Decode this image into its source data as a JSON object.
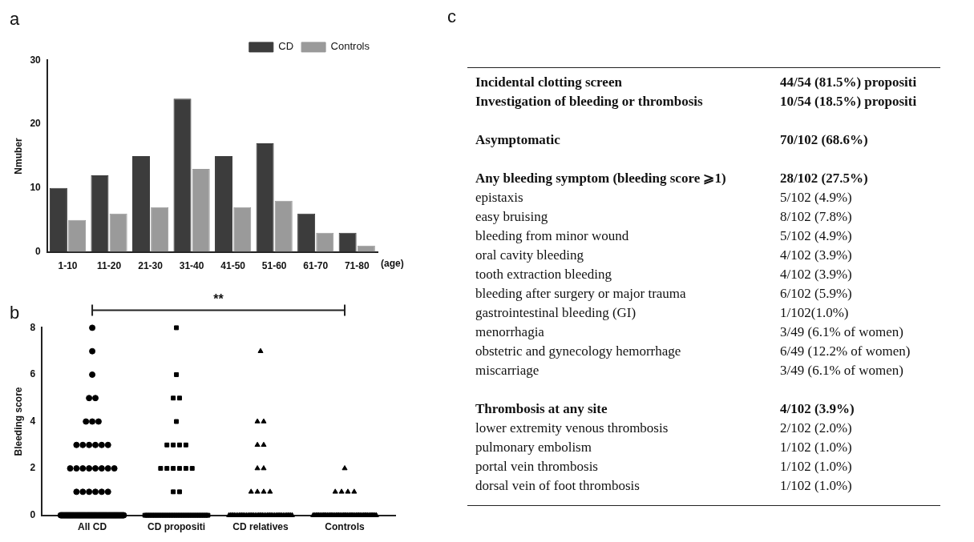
{
  "chart_data": [
    {
      "type": "bar",
      "title": "a",
      "xlabel": "(age)",
      "ylabel": "Nmuber",
      "categories": [
        "1-10",
        "11-20",
        "21-30",
        "31-40",
        "41-50",
        "51-60",
        "61-70",
        "71-80"
      ],
      "legend": "top right",
      "ylim": [
        0,
        30
      ],
      "yticks": [
        0,
        10,
        20,
        30
      ],
      "series": [
        {
          "name": "CD",
          "color": "#3c3c3c",
          "values": [
            10,
            12,
            15,
            24,
            15,
            17,
            6,
            3
          ]
        },
        {
          "name": "Controls",
          "color": "#9a9a9a",
          "values": [
            5,
            6,
            7,
            13,
            7,
            8,
            3,
            1
          ]
        }
      ]
    },
    {
      "type": "scatter",
      "title": "b",
      "ylabel": "Bleeding score",
      "categories": [
        "All CD",
        "CD propositi",
        "CD relatives",
        "Controls"
      ],
      "ylim": [
        0,
        8
      ],
      "yticks": [
        0,
        2,
        4,
        6,
        8
      ],
      "annotations": [
        "**"
      ],
      "series": [
        {
          "color": "#000000",
          "marker": "circle",
          "x": [
            "All CD",
            "All CD",
            "All CD",
            "All CD",
            "All CD",
            "All CD",
            "All CD",
            "All CD",
            "All CD",
            "All CD",
            "All CD",
            "All CD",
            "All CD",
            "All CD",
            "All CD",
            "All CD",
            "All CD",
            "All CD",
            "All CD",
            "All CD",
            "All CD",
            "All CD",
            "All CD",
            "All CD",
            "All CD",
            "All CD",
            "All CD",
            "All CD",
            "All CD",
            "All CD",
            "All CD",
            "All CD",
            "All CD",
            "All CD",
            "All CD",
            "All CD",
            "All CD",
            "All CD",
            "All CD",
            "All CD",
            "All CD",
            "All CD",
            "All CD",
            "All CD",
            "All CD",
            "All CD",
            "All CD",
            "All CD",
            "All CD",
            "All CD",
            "All CD",
            "All CD",
            "All CD",
            "All CD",
            "All CD",
            "All CD",
            "All CD",
            "All CD",
            "All CD",
            "All CD",
            "All CD",
            "All CD",
            "All CD",
            "All CD",
            "All CD",
            "All CD",
            "All CD",
            "All CD",
            "All CD",
            "All CD",
            "All CD",
            "All CD",
            "All CD",
            "All CD",
            "All CD",
            "All CD",
            "All CD",
            "All CD",
            "All CD",
            "All CD",
            "All CD",
            "All CD",
            "All CD",
            "All CD",
            "All CD",
            "All CD",
            "All CD",
            "All CD",
            "All CD",
            "All CD",
            "All CD",
            "All CD",
            "All CD",
            "All CD",
            "All CD",
            "All CD",
            "All CD",
            "All CD",
            "All CD",
            "All CD",
            "All CD",
            "All CD"
          ],
          "values": [
            8,
            7,
            6,
            5,
            5,
            4,
            4,
            4,
            3,
            3,
            3,
            3,
            3,
            3,
            2,
            2,
            2,
            2,
            2,
            2,
            2,
            2,
            1,
            1,
            1,
            1,
            1,
            1,
            0,
            0,
            0,
            0,
            0,
            0,
            0,
            0,
            0,
            0,
            0,
            0,
            0,
            0,
            0,
            0,
            0,
            0,
            0,
            0,
            0,
            0,
            0,
            0,
            0,
            0,
            0,
            0,
            0,
            0,
            0,
            0,
            0,
            0,
            0,
            0,
            0,
            0,
            0,
            0,
            0,
            0,
            0,
            0,
            0,
            0,
            0,
            0,
            0,
            0,
            0,
            0,
            0,
            0,
            0,
            0,
            0,
            0,
            0,
            0,
            0,
            0,
            0,
            0,
            0,
            0,
            0,
            0,
            0,
            0,
            0,
            0,
            0,
            0
          ]
        },
        {
          "color": "#000000",
          "marker": "square",
          "x": [
            "CD propositi",
            "CD propositi",
            "CD propositi",
            "CD propositi",
            "CD propositi",
            "CD propositi",
            "CD propositi",
            "CD propositi",
            "CD propositi",
            "CD propositi",
            "CD propositi",
            "CD propositi",
            "CD propositi",
            "CD propositi",
            "CD propositi",
            "CD propositi",
            "CD propositi",
            "CD propositi",
            "CD propositi",
            "CD propositi",
            "CD propositi",
            "CD propositi",
            "CD propositi",
            "CD propositi",
            "CD propositi",
            "CD propositi",
            "CD propositi",
            "CD propositi",
            "CD propositi",
            "CD propositi",
            "CD propositi",
            "CD propositi",
            "CD propositi",
            "CD propositi",
            "CD propositi",
            "CD propositi",
            "CD propositi",
            "CD propositi",
            "CD propositi",
            "CD propositi",
            "CD propositi",
            "CD propositi",
            "CD propositi",
            "CD propositi",
            "CD propositi",
            "CD propositi",
            "CD propositi",
            "CD propositi",
            "CD propositi",
            "CD propositi",
            "CD propositi",
            "CD propositi",
            "CD propositi",
            "CD propositi"
          ],
          "values": [
            8,
            6,
            5,
            5,
            4,
            3,
            3,
            3,
            3,
            2,
            2,
            2,
            2,
            2,
            2,
            1,
            1,
            0,
            0,
            0,
            0,
            0,
            0,
            0,
            0,
            0,
            0,
            0,
            0,
            0,
            0,
            0,
            0,
            0,
            0,
            0,
            0,
            0,
            0,
            0,
            0,
            0,
            0,
            0,
            0,
            0,
            0,
            0,
            0,
            0,
            0,
            0,
            0,
            0
          ]
        },
        {
          "color": "#000000",
          "marker": "triangle",
          "x": [
            "CD relatives",
            "CD relatives",
            "CD relatives",
            "CD relatives",
            "CD relatives",
            "CD relatives",
            "CD relatives",
            "CD relatives",
            "CD relatives",
            "CD relatives",
            "CD relatives",
            "CD relatives",
            "CD relatives",
            "CD relatives",
            "CD relatives",
            "CD relatives",
            "CD relatives",
            "CD relatives",
            "CD relatives",
            "CD relatives",
            "CD relatives",
            "CD relatives",
            "CD relatives",
            "CD relatives",
            "CD relatives",
            "CD relatives",
            "CD relatives",
            "CD relatives",
            "CD relatives",
            "CD relatives",
            "CD relatives",
            "CD relatives",
            "CD relatives",
            "CD relatives",
            "CD relatives",
            "CD relatives",
            "CD relatives",
            "CD relatives",
            "CD relatives",
            "CD relatives",
            "CD relatives",
            "CD relatives",
            "CD relatives",
            "CD relatives",
            "CD relatives",
            "CD relatives",
            "CD relatives",
            "CD relatives"
          ],
          "values": [
            7,
            4,
            4,
            3,
            3,
            2,
            2,
            1,
            1,
            1,
            1,
            0,
            0,
            0,
            0,
            0,
            0,
            0,
            0,
            0,
            0,
            0,
            0,
            0,
            0,
            0,
            0,
            0,
            0,
            0,
            0,
            0,
            0,
            0,
            0,
            0,
            0,
            0,
            0,
            0,
            0,
            0,
            0,
            0,
            0,
            0,
            0,
            0
          ]
        },
        {
          "color": "#000000",
          "marker": "triangle",
          "x": [
            "Controls",
            "Controls",
            "Controls",
            "Controls",
            "Controls",
            "Controls",
            "Controls",
            "Controls",
            "Controls",
            "Controls",
            "Controls",
            "Controls",
            "Controls",
            "Controls",
            "Controls",
            "Controls",
            "Controls",
            "Controls",
            "Controls",
            "Controls",
            "Controls",
            "Controls",
            "Controls",
            "Controls",
            "Controls",
            "Controls",
            "Controls",
            "Controls",
            "Controls",
            "Controls",
            "Controls",
            "Controls",
            "Controls",
            "Controls",
            "Controls",
            "Controls",
            "Controls",
            "Controls",
            "Controls",
            "Controls",
            "Controls",
            "Controls",
            "Controls",
            "Controls",
            "Controls",
            "Controls",
            "Controls",
            "Controls",
            "Controls",
            "Controls"
          ],
          "values": [
            2,
            1,
            1,
            1,
            1,
            0,
            0,
            0,
            0,
            0,
            0,
            0,
            0,
            0,
            0,
            0,
            0,
            0,
            0,
            0,
            0,
            0,
            0,
            0,
            0,
            0,
            0,
            0,
            0,
            0,
            0,
            0,
            0,
            0,
            0,
            0,
            0,
            0,
            0,
            0,
            0,
            0,
            0,
            0,
            0,
            0,
            0,
            0,
            0,
            0
          ]
        }
      ]
    },
    {
      "type": "other",
      "title": "c",
      "annotations": [
        "Incidental clotting screen",
        "44/54 (81.5%) propositi",
        "Investigation of bleeding or thrombosis",
        "10/54 (18.5%) propositi",
        "Asymptomatic",
        "70/102 (68.6%)",
        "Any bleeding symptom (bleeding score ⩾1)",
        "28/102 (27.5%)",
        "epistaxis",
        "5/102 (4.9%)",
        "easy bruising",
        "8/102 (7.8%)",
        "bleeding from minor wound",
        "5/102 (4.9%)",
        "oral cavity bleeding",
        "4/102 (3.9%)",
        "tooth extraction bleeding",
        "4/102 (3.9%)",
        "bleeding after surgery or major trauma",
        "6/102 (5.9%)",
        "gastrointestinal bleeding (GI)",
        "1/102(1.0%)",
        "menorrhagia",
        "3/49 (6.1% of women)",
        "obstetric and gynecology hemorrhage",
        "6/49 (12.2% of women)",
        "miscarriage",
        "3/49 (6.1% of women)",
        "Thrombosis at any site",
        "4/102 (3.9%)",
        "lower extremity venous thrombosis",
        "2/102 (2.0%)",
        "pulmonary embolism",
        "1/102 (1.0%)",
        "portal vein thrombosis",
        "1/102 (1.0%)",
        "dorsal vein of foot thrombosis",
        "1/102 (1.0%)"
      ]
    }
  ]
}
